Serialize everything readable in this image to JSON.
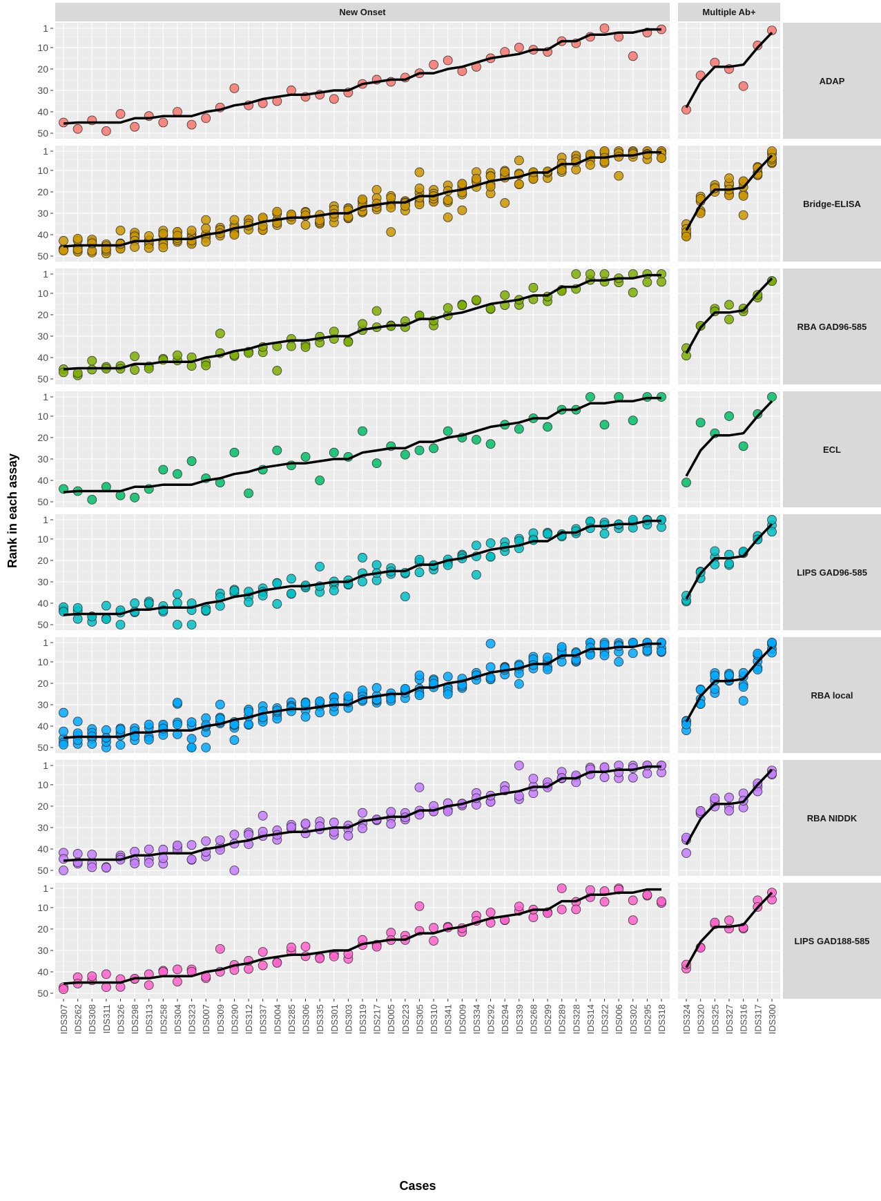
{
  "chart_data": {
    "type": "scatter",
    "xlabel": "Cases",
    "ylabel": "Rank in each assay",
    "ylim": [
      50,
      1
    ],
    "y_reversed": true,
    "y_ticks": [
      1,
      10,
      20,
      30,
      40,
      50
    ],
    "grid": true,
    "legend": "none",
    "facet_cols": [
      "New Onset",
      "Multiple Ab+"
    ],
    "facet_rows": [
      "ADAP",
      "Bridge-ELISA",
      "RBA GAD96-585",
      "ECL",
      "LIPS GAD96-585",
      "RBA local",
      "RBA NIDDK",
      "LIPS GAD188-585"
    ],
    "row_colors": [
      "#F8766D",
      "#CD9600",
      "#7CAE00",
      "#00BE67",
      "#00BFC4",
      "#00A9FF",
      "#C77CFF",
      "#FF61CC"
    ],
    "categories_new_onset": [
      "IDS307",
      "IDS262",
      "IDS308",
      "IDS311",
      "IDS326",
      "IDS298",
      "IDS313",
      "IDS258",
      "IDS304",
      "IDS323",
      "IDS007",
      "IDS309",
      "IDS290",
      "IDS312",
      "IDS337",
      "IDS004",
      "IDS285",
      "IDS306",
      "IDS335",
      "IDS301",
      "IDS303",
      "IDS319",
      "IDS217",
      "IDS005",
      "IDS223",
      "IDS305",
      "IDS310",
      "IDS341",
      "IDS009",
      "IDS334",
      "IDS292",
      "IDS294",
      "IDS339",
      "IDS268",
      "IDS299",
      "IDS289",
      "IDS328",
      "IDS314",
      "IDS322",
      "IDS006",
      "IDS302",
      "IDS295",
      "IDS318"
    ],
    "categories_multiple_ab": [
      "IDS324",
      "IDS320",
      "IDS325",
      "IDS327",
      "IDS316",
      "IDS317",
      "IDS300"
    ],
    "median_rank_new_onset": [
      45.5,
      45,
      45,
      45,
      45,
      43,
      43,
      42,
      42,
      42,
      40,
      39,
      37,
      36,
      34,
      33,
      32,
      32,
      31,
      30,
      30,
      27,
      26,
      25,
      25,
      22,
      22,
      20,
      19,
      17,
      15,
      14,
      13,
      11,
      11,
      7,
      7,
      4,
      4,
      3,
      3,
      1.5,
      1.5
    ],
    "median_rank_multiple_ab": [
      38,
      26,
      19,
      19,
      18,
      10,
      3
    ],
    "series_adap_new_onset": [
      45,
      48,
      44,
      49,
      41,
      47,
      42,
      45,
      40,
      46,
      43,
      38,
      29,
      37,
      36,
      35,
      30,
      33,
      32,
      34,
      31,
      27,
      25,
      26,
      24,
      22,
      18,
      16,
      21,
      19,
      15,
      12,
      10,
      11,
      12,
      7,
      8,
      5,
      1,
      5,
      14,
      3,
      1.5
    ],
    "series_adap_multiple_ab": [
      39,
      23,
      17,
      20,
      28,
      9,
      2
    ],
    "series_ecl_new_onset": [
      44,
      45,
      49,
      43,
      47,
      48,
      44,
      35,
      37,
      31,
      39,
      41,
      27,
      46,
      35,
      26,
      33,
      29,
      40,
      27,
      29,
      17,
      32,
      24,
      28,
      26,
      25,
      17,
      20,
      21,
      23,
      14,
      16,
      11,
      15,
      7,
      7,
      1,
      14,
      1,
      12,
      1,
      1
    ],
    "series_ecl_multiple_ab": [
      41,
      13,
      18,
      10,
      24,
      9,
      1
    ]
  },
  "panel_label_new_onset": "New Onset",
  "panel_label_multiple_ab": "Multiple Ab+"
}
